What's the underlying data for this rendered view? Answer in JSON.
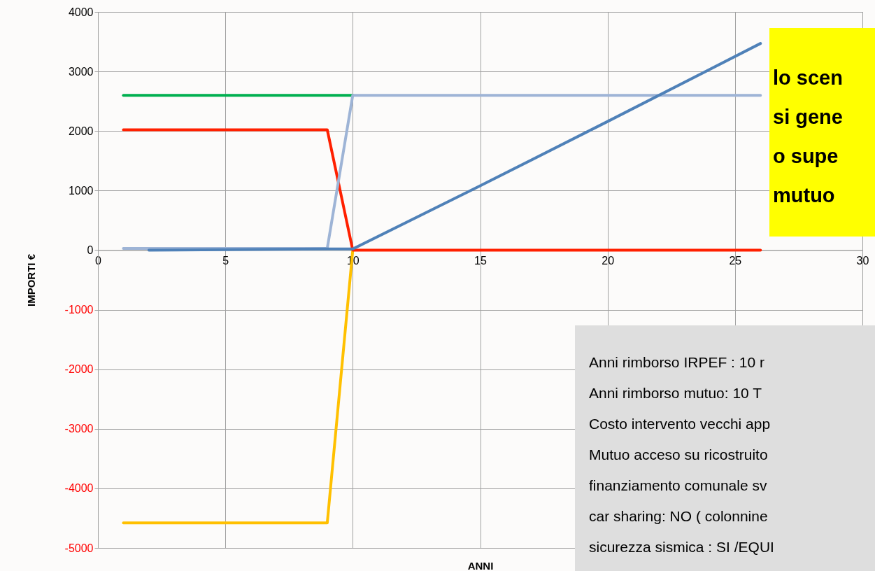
{
  "chart_data": {
    "type": "line",
    "xlabel": "ANNI",
    "ylabel": "IMPORTI  €",
    "xlim": [
      0,
      30
    ],
    "xticks": [
      0,
      5,
      10,
      15,
      20,
      25,
      30
    ],
    "ylim": [
      -5000,
      4000
    ],
    "yticks": [
      -5000,
      -4000,
      -3000,
      -2000,
      -1000,
      0,
      1000,
      2000,
      3000,
      4000
    ],
    "grid": true,
    "line_style": "solid",
    "marker": "none",
    "series": [
      {
        "color": "#ffc000",
        "x": [
          1,
          9,
          10
        ],
        "values": [
          -4580,
          -4580,
          0
        ]
      },
      {
        "color": "#ff2000",
        "x": [
          1,
          9,
          10,
          26
        ],
        "values": [
          2020,
          2020,
          0,
          0
        ]
      },
      {
        "color": "#00b050",
        "x": [
          1,
          10
        ],
        "values": [
          2600,
          2600
        ]
      },
      {
        "color": "#9eb4d6",
        "x": [
          1,
          9,
          10,
          26
        ],
        "values": [
          30,
          30,
          2600,
          2600
        ]
      },
      {
        "color": "#4f81b8",
        "x": [
          2,
          9,
          10,
          15,
          20,
          26
        ],
        "values": [
          0,
          20,
          20,
          1080,
          2160,
          3470
        ]
      }
    ],
    "annotations": [
      "lo scen",
      "si gene",
      "o supe",
      "mutuo",
      "Anni rimborso IRPEF  : 10   r",
      "Anni rimborso mutuo: 10  T",
      "Costo intervento vecchi app",
      "Mutuo acceso su ricostruito",
      "finanziamento comunale sv",
      "car sharing: NO ( colonnine",
      "sicurezza sismica : SI /EQUI"
    ]
  }
}
